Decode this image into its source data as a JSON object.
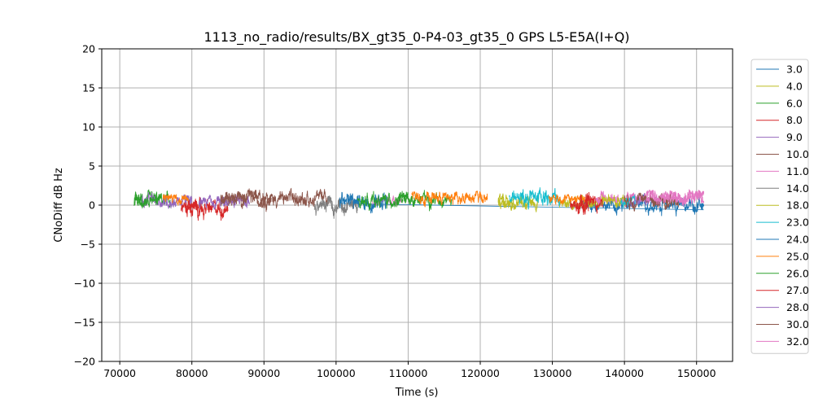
{
  "chart_data": {
    "type": "line",
    "title": "1113_no_radio/results/BX_gt35_0-P4-03_gt35_0 GPS L5-E5A(I+Q)",
    "xlabel": "Time (s)",
    "ylabel": "CNoDiff dB Hz",
    "xlim": [
      67500,
      155000
    ],
    "ylim": [
      -20,
      20
    ],
    "xticks": [
      70000,
      80000,
      90000,
      100000,
      110000,
      120000,
      130000,
      140000,
      150000
    ],
    "yticks": [
      -20,
      -15,
      -10,
      -5,
      0,
      5,
      10,
      15,
      20
    ],
    "grid": true,
    "legend_position": "right",
    "series": [
      {
        "name": "3.0",
        "color": "#1f77b4",
        "segments": [
          [
            134000,
            151000,
            0.0,
            0.8,
            1.8
          ]
        ],
        "line": [
          [
            101000,
            0.2
          ],
          [
            151000,
            -0.6
          ]
        ]
      },
      {
        "name": "4.0",
        "color": "#bcbd22",
        "segments": [
          [
            122500,
            128000,
            0.3,
            0.8,
            2.0
          ],
          [
            131000,
            137000,
            0.3,
            0.8,
            1.8
          ]
        ]
      },
      {
        "name": "6.0",
        "color": "#2ca02c",
        "segments": [
          [
            72000,
            77000,
            0.6,
            0.9,
            2.0
          ],
          [
            108500,
            116000,
            0.8,
            0.8,
            2.0
          ]
        ]
      },
      {
        "name": "8.0",
        "color": "#d62728",
        "segments": [
          [
            79000,
            85000,
            -0.5,
            1.0,
            1.8
          ],
          [
            133000,
            137000,
            0.4,
            1.0,
            2.0
          ]
        ]
      },
      {
        "name": "9.0",
        "color": "#9467bd",
        "segments": [
          [
            73000,
            80000,
            0.5,
            0.8,
            1.8
          ],
          [
            140000,
            145000,
            0.6,
            0.7,
            1.6
          ]
        ]
      },
      {
        "name": "10.0",
        "color": "#8c564b",
        "segments": [
          [
            84000,
            99000,
            0.8,
            0.9,
            2.2
          ],
          [
            144000,
            147500,
            0.6,
            0.8,
            1.8
          ]
        ]
      },
      {
        "name": "11.0",
        "color": "#e377c2",
        "segments": [
          [
            105000,
            109000,
            0.7,
            0.6,
            1.6
          ],
          [
            136000,
            151000,
            0.9,
            0.8,
            2.0
          ]
        ]
      },
      {
        "name": "14.0",
        "color": "#7f7f7f",
        "segments": [
          [
            97000,
            103000,
            0.0,
            1.0,
            2.0
          ]
        ]
      },
      {
        "name": "18.0",
        "color": "#bcbd22",
        "segments": [
          [
            122500,
            124500,
            0.2,
            0.8,
            1.6
          ],
          [
            137000,
            140500,
            0.4,
            0.8,
            1.6
          ]
        ]
      },
      {
        "name": "23.0",
        "color": "#17becf",
        "segments": [
          [
            124000,
            131000,
            1.0,
            1.0,
            2.6
          ],
          [
            139500,
            141500,
            0.4,
            0.6,
            1.4
          ]
        ]
      },
      {
        "name": "24.0",
        "color": "#1f77b4",
        "segments": [
          [
            100500,
            107000,
            0.5,
            1.0,
            2.2
          ]
        ]
      },
      {
        "name": "25.0",
        "color": "#ff7f0e",
        "segments": [
          [
            76000,
            79500,
            0.8,
            0.6,
            1.4
          ],
          [
            110500,
            121000,
            1.0,
            0.8,
            1.8
          ],
          [
            129500,
            134500,
            0.8,
            0.6,
            1.4
          ]
        ]
      },
      {
        "name": "26.0",
        "color": "#2ca02c",
        "segments": [
          [
            72000,
            75500,
            0.4,
            0.8,
            1.6
          ],
          [
            103000,
            110000,
            0.6,
            0.8,
            1.8
          ]
        ]
      },
      {
        "name": "27.0",
        "color": "#d62728",
        "segments": [
          [
            78500,
            81500,
            -0.2,
            0.8,
            1.6
          ],
          [
            132500,
            135000,
            -0.3,
            1.0,
            2.0
          ]
        ]
      },
      {
        "name": "28.0",
        "color": "#9467bd",
        "segments": [
          [
            81000,
            88000,
            0.4,
            0.7,
            1.4
          ]
        ]
      },
      {
        "name": "30.0",
        "color": "#8c564b",
        "segments": [
          [
            84000,
            91000,
            1.0,
            0.8,
            2.0
          ],
          [
            140000,
            146500,
            0.6,
            0.8,
            1.6
          ]
        ]
      },
      {
        "name": "32.0",
        "color": "#e377c2",
        "segments": [
          [
            143000,
            151000,
            1.0,
            0.8,
            2.0
          ]
        ]
      }
    ]
  }
}
